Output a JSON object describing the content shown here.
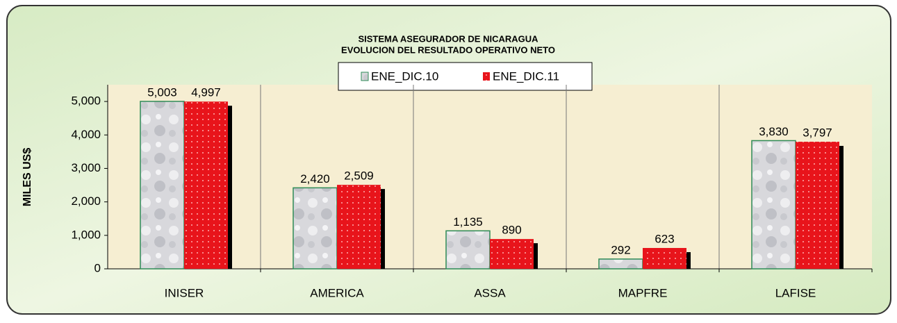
{
  "chart_data": {
    "type": "bar",
    "title": "SISTEMA ASEGURADOR  DE NICARAGUA",
    "subtitle": "EVOLUCION DEL RESULTADO OPERATIVO NETO",
    "y_label": "MILES US$",
    "categories": [
      "INISER",
      "AMERICA",
      "ASSA",
      "MAPFRE",
      "LAFISE"
    ],
    "series": [
      {
        "name": "ENE_DIC.10",
        "color": "#2e8b57",
        "values": [
          5003,
          2420,
          1135,
          292,
          3830
        ],
        "value_labels": [
          "5,003",
          "2,420",
          "1,135",
          "292",
          "3,830"
        ]
      },
      {
        "name": "ENE_DIC.11",
        "color": "#e8141b",
        "values": [
          4997,
          2509,
          890,
          623,
          3797
        ],
        "value_labels": [
          "4,997",
          "2,509",
          "890",
          "623",
          "3,797"
        ]
      }
    ],
    "ylim": [
      0,
      5500
    ],
    "yticks": [
      0,
      {
        "value": 1000,
        "label": "1,000"
      },
      {
        "value": 2000,
        "label": "2,000"
      },
      {
        "value": 3000,
        "label": "3,000"
      },
      {
        "value": 4000,
        "label": "4,000"
      },
      {
        "value": 5000,
        "label": "5,000"
      }
    ]
  }
}
